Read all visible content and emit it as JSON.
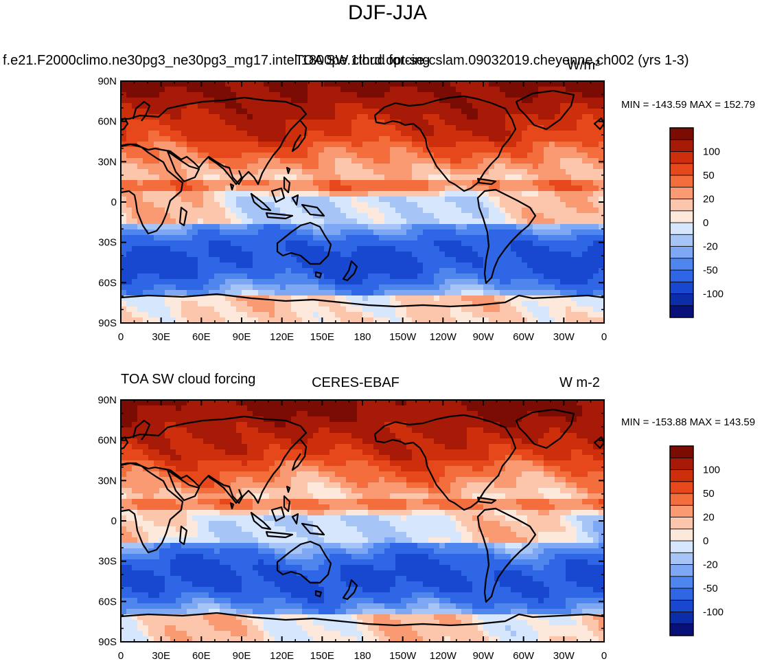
{
  "title": "DJF-JJA",
  "palette": [
    "#08107a",
    "#0b2ea8",
    "#1848cf",
    "#2f66e6",
    "#4f86ee",
    "#7ea8f3",
    "#a7c4f6",
    "#d6e6fc",
    "#fde8dc",
    "#fcc6ac",
    "#f99a73",
    "#f36e3c",
    "#e6471b",
    "#cd2e0c",
    "#a81a08",
    "#7a0c04"
  ],
  "color_bar_labels": [
    "100",
    "50",
    "20",
    "0",
    "-20",
    "-50",
    "-100"
  ],
  "lat_labels": [
    "90N",
    "60N",
    "30N",
    "0",
    "30S",
    "60S",
    "90S"
  ],
  "lon_labels": [
    "0",
    "30E",
    "60E",
    "90E",
    "120E",
    "150E",
    "180",
    "150W",
    "120W",
    "90W",
    "60W",
    "30W",
    "0"
  ],
  "panels": [
    {
      "left_string": "f.e21.F2000climo.ne30pg3_ne30pg3_mg17.intel.1800pe.1thrd.opt-se-cslam.09032019.cheyenne.ch002 (yrs 1-3)",
      "center_string": "TOA SW cloud forcing",
      "right_string": "W/m²",
      "minmax": "MIN = -143.59  MAX = 152.79"
    },
    {
      "left_string": "TOA SW cloud forcing",
      "center_string": "CERES-EBAF",
      "right_string": "W m-2",
      "minmax": "MIN = -153.88  MAX = 143.59"
    }
  ]
}
